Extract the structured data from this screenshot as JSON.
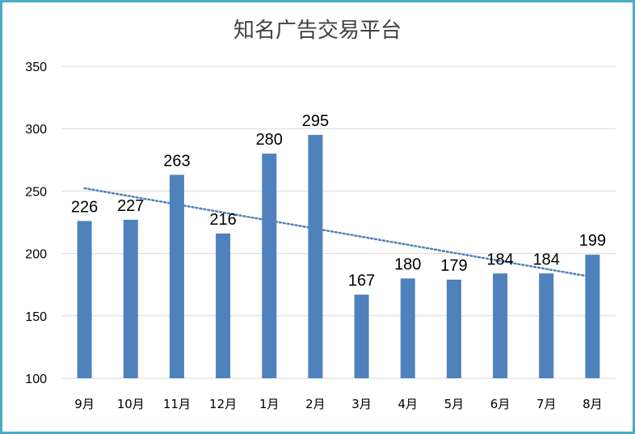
{
  "chart_data": {
    "type": "bar",
    "title": "知名广告交易平台",
    "categories": [
      "9月",
      "10月",
      "11月",
      "12月",
      "1月",
      "2月",
      "3月",
      "4月",
      "5月",
      "6月",
      "7月",
      "8月"
    ],
    "values": [
      226,
      227,
      263,
      216,
      280,
      295,
      167,
      180,
      179,
      184,
      184,
      199
    ],
    "yticks": [
      "100",
      "150",
      "200",
      "250",
      "300",
      "350"
    ],
    "ylim": [
      100,
      350
    ],
    "grid": true,
    "trendline": {
      "type": "linear",
      "style": "dotted"
    },
    "colors": {
      "bar": "#4f81bd",
      "trendline": "#4f81bd",
      "grid": "#d9d9d9",
      "border": "#4aacc5"
    }
  }
}
